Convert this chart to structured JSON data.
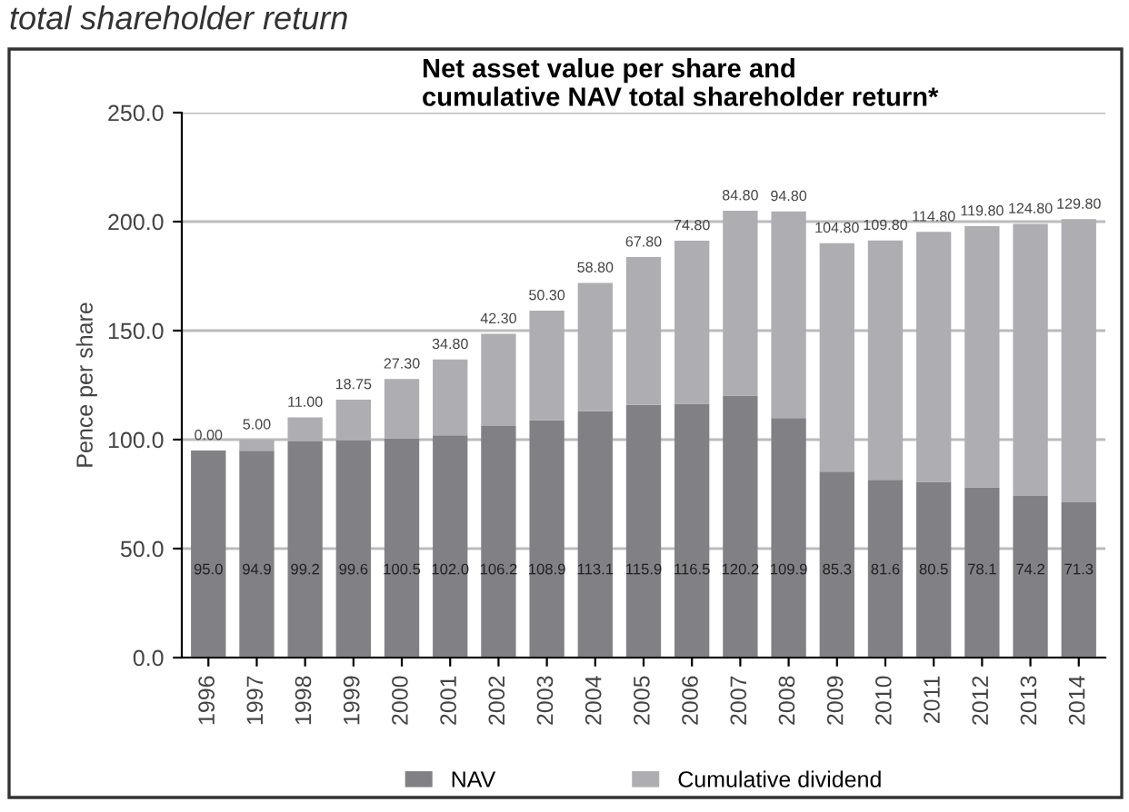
{
  "chart_data": {
    "type": "bar",
    "title": "Net asset value per share and\ncumulative NAV total shareholder return*",
    "ylabel": "Pence per share",
    "annotations": [
      "total shareholder return"
    ],
    "categories": [
      "1996",
      "1997",
      "1998",
      "1999",
      "2000",
      "2001",
      "2002",
      "2003",
      "2004",
      "2005",
      "2006",
      "2007",
      "2008",
      "2009",
      "2010",
      "2011",
      "2012",
      "2013",
      "2014"
    ],
    "stacked": true,
    "data_labels": true,
    "grid": "y",
    "legend": "bottom",
    "ylim": [
      0,
      250
    ],
    "yticks": [
      {
        "value": 0,
        "label": "0.0"
      },
      {
        "value": 50,
        "label": "50.0"
      },
      {
        "value": 100,
        "label": "100.0"
      },
      {
        "value": 150,
        "label": "150.0"
      },
      {
        "value": 200,
        "label": "200.0"
      },
      {
        "value": 250,
        "label": "250.0"
      }
    ],
    "series": [
      {
        "name": "NAV",
        "color": "#808085",
        "values": [
          95.0,
          94.9,
          99.2,
          99.6,
          100.5,
          102.0,
          106.2,
          108.9,
          113.1,
          115.9,
          116.5,
          120.2,
          109.9,
          85.3,
          81.6,
          80.5,
          78.1,
          74.2,
          71.3
        ],
        "value_labels": [
          "95.0",
          "94.9",
          "99.2",
          "99.6",
          "100.5",
          "102.0",
          "106.2",
          "108.9",
          "113.1",
          "115.9",
          "116.5",
          "120.2",
          "109.9",
          "85.3",
          "81.6",
          "80.5",
          "78.1",
          "74.2",
          "71.3"
        ]
      },
      {
        "name": "Cumulative dividend",
        "color": "#adadb2",
        "values": [
          0.0,
          5.0,
          11.0,
          18.75,
          27.3,
          34.8,
          42.3,
          50.3,
          58.8,
          67.8,
          74.8,
          84.8,
          94.8,
          104.8,
          109.8,
          114.8,
          119.8,
          124.8,
          129.8
        ],
        "value_labels": [
          "0.00",
          "5.00",
          "11.00",
          "18.75",
          "27.30",
          "34.80",
          "42.30",
          "50.30",
          "58.80",
          "67.80",
          "74.80",
          "84.80",
          "94.80",
          "104.80",
          "109.80",
          "114.80",
          "119.80",
          "124.80",
          "129.80"
        ]
      }
    ]
  }
}
